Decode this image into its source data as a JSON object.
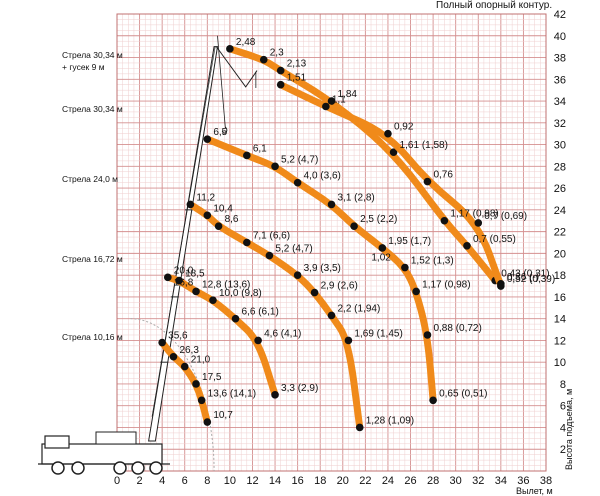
{
  "header": {
    "contour_title": "Полный опорный контур."
  },
  "axes": {
    "x_caption": "Вылет, м",
    "y_caption": "Высота подъема, м"
  },
  "boom_labels": [
    "Стрела 30,34 м\n+ гусек 9 м",
    "Стрела 30,34 м",
    "Стрела 24,0 м",
    "Стрела 16,72 м",
    "Стрела 10,16 м"
  ],
  "chart_data": {
    "type": "scatter",
    "title": "Полный опорный контур.",
    "xlabel": "Вылет, м",
    "ylabel": "Высота подъема, м",
    "xlim": [
      0,
      38
    ],
    "ylim": [
      0,
      42
    ],
    "grid": true,
    "x_ticks": [
      0,
      2,
      4,
      6,
      8,
      10,
      12,
      14,
      16,
      18,
      20,
      22,
      24,
      26,
      28,
      30,
      32,
      34,
      36,
      38
    ],
    "y_ticks": [
      2,
      4,
      6,
      8,
      10,
      12,
      14,
      16,
      18,
      20,
      22,
      24,
      26,
      28,
      30,
      32,
      34,
      36,
      38,
      40,
      42
    ],
    "series": [
      {
        "name": "Стрела 30,34 м + гусек 9 м (outer)",
        "points": [
          [
            10,
            38.8,
            "2,48"
          ],
          [
            13,
            37.8,
            "2,3"
          ],
          [
            14.5,
            36.8,
            "2,13"
          ],
          [
            19,
            34,
            "1,84"
          ],
          [
            24.5,
            29.3,
            "1,61 (1,58)"
          ],
          [
            29,
            23,
            "1,17 (0,98)"
          ],
          [
            31,
            20.7,
            "0,7 (0,55)"
          ],
          [
            33.5,
            17.5,
            "0,43 (0,31)"
          ]
        ]
      },
      {
        "name": "Стрела 30,34 м + гусек 9 м (inner)",
        "points": [
          [
            14.5,
            35.5,
            "1,51"
          ],
          [
            18.5,
            33.5,
            "1,1"
          ],
          [
            24,
            31,
            "0,92"
          ],
          [
            27.5,
            26.6,
            "0,76"
          ],
          [
            32,
            22.8,
            "0,7 (0,69)"
          ],
          [
            34,
            17,
            "0,52 (0,39)"
          ],
          [
            34,
            17.2,
            "0,36 (-)"
          ]
        ]
      },
      {
        "name": "Стрела 30,34 м",
        "points": [
          [
            8,
            30.5,
            "6,5"
          ],
          [
            11.5,
            29,
            "6,1"
          ],
          [
            14,
            28,
            "5,2 (4,7)"
          ],
          [
            16,
            26.5,
            "4,0 (3,6)"
          ],
          [
            19,
            24.5,
            "3,1 (2,8)"
          ],
          [
            21,
            22.5,
            "2,5 (2,2)"
          ],
          [
            23.5,
            20.5,
            "1,95 (1,7)"
          ],
          [
            25.5,
            18.7,
            "1,52 (1,3)"
          ],
          [
            26.5,
            16.5,
            "1,17 (0,98)"
          ],
          [
            27.5,
            12.5,
            "0,88 (0,72)"
          ],
          [
            28,
            6.5,
            "0,65 (0,51)"
          ]
        ]
      },
      {
        "name": "Стрела 24,0 м",
        "points": [
          [
            6.5,
            24.5,
            "11,2"
          ],
          [
            8,
            23.5,
            "10,4"
          ],
          [
            9,
            22.5,
            "8,6"
          ],
          [
            11.5,
            21,
            "7,1 (6,6)"
          ],
          [
            13.5,
            19.8,
            "5,2 (4,7)"
          ],
          [
            16,
            18,
            "3,9 (3,5)"
          ],
          [
            17.5,
            16.4,
            "2,9 (2,6)"
          ],
          [
            19,
            14.3,
            "2,2 (1,94)"
          ],
          [
            20.5,
            12,
            "1,69 (1,45)"
          ],
          [
            21.5,
            4,
            "1,28 (1,09)"
          ]
        ]
      },
      {
        "name": "Стрела 16,72 м",
        "points": [
          [
            4.5,
            17.8,
            "20,0"
          ],
          [
            5.5,
            17.5,
            "18,5"
          ],
          [
            7,
            16.5,
            "12,8 (13,6)"
          ],
          [
            8.5,
            15.7,
            "10,0 (9,8)"
          ],
          [
            10.5,
            14,
            "6,6 (6,1)"
          ],
          [
            12.5,
            12,
            "4,6 (4,1)"
          ],
          [
            14,
            7,
            "3,3 (2,9)"
          ]
        ]
      },
      {
        "name": "Стрела 10,16 м",
        "points": [
          [
            4,
            11.8,
            "35,6"
          ],
          [
            5,
            10.5,
            "26,3"
          ],
          [
            6,
            9.6,
            "21,0"
          ],
          [
            7,
            8,
            "17,5"
          ],
          [
            7.5,
            6.5,
            "13,6 (14,1)"
          ],
          [
            8,
            4.5,
            "10,7"
          ]
        ]
      }
    ],
    "extra_labels": [
      [
        4.5,
        16.7,
        "16,8"
      ],
      [
        22,
        19,
        "1,02"
      ]
    ]
  }
}
